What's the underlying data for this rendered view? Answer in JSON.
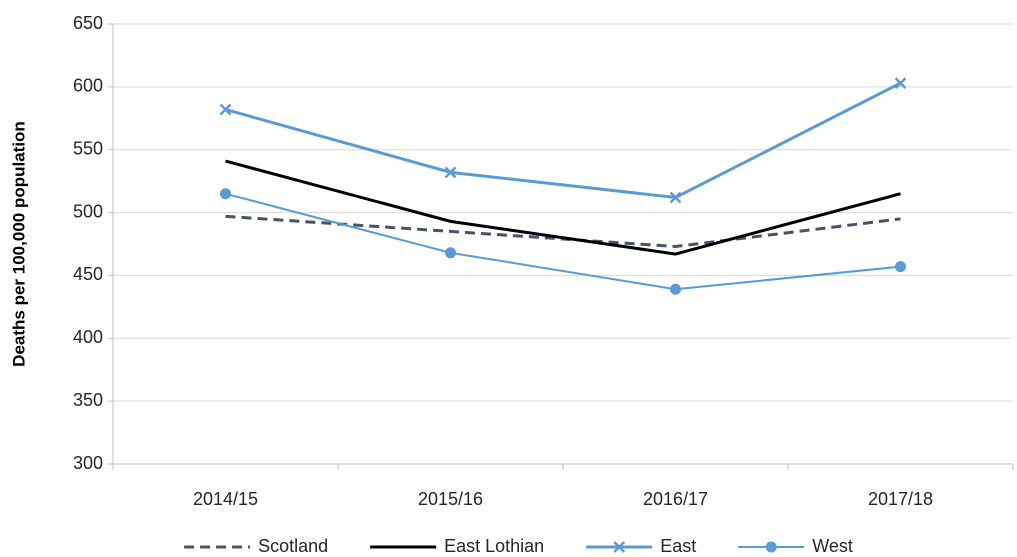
{
  "chart_data": {
    "type": "line",
    "y_label": "Deaths per 100,000 population",
    "categories": [
      "2014/15",
      "2015/16",
      "2016/17",
      "2017/18"
    ],
    "series": [
      {
        "name": "Scotland",
        "color": "#44546a",
        "values": [
          497,
          485,
          473,
          495
        ],
        "dash": true,
        "width": 3,
        "marker": "none"
      },
      {
        "name": "East Lothian",
        "color": "#000000",
        "values": [
          541,
          493,
          467,
          515
        ],
        "dash": false,
        "width": 3,
        "marker": "none"
      },
      {
        "name": "East",
        "color": "#5b9bd5",
        "values": [
          582,
          532,
          512,
          603
        ],
        "dash": false,
        "width": 3,
        "marker": "x"
      },
      {
        "name": "West",
        "color": "#5b9bd5",
        "values": [
          515,
          468,
          439,
          457
        ],
        "dash": false,
        "width": 2,
        "marker": "circle"
      }
    ],
    "ylim": [
      300,
      650
    ],
    "yticks": [
      300,
      350,
      400,
      450,
      500,
      550,
      600,
      650
    ],
    "grid": true,
    "legend": "bottom"
  }
}
